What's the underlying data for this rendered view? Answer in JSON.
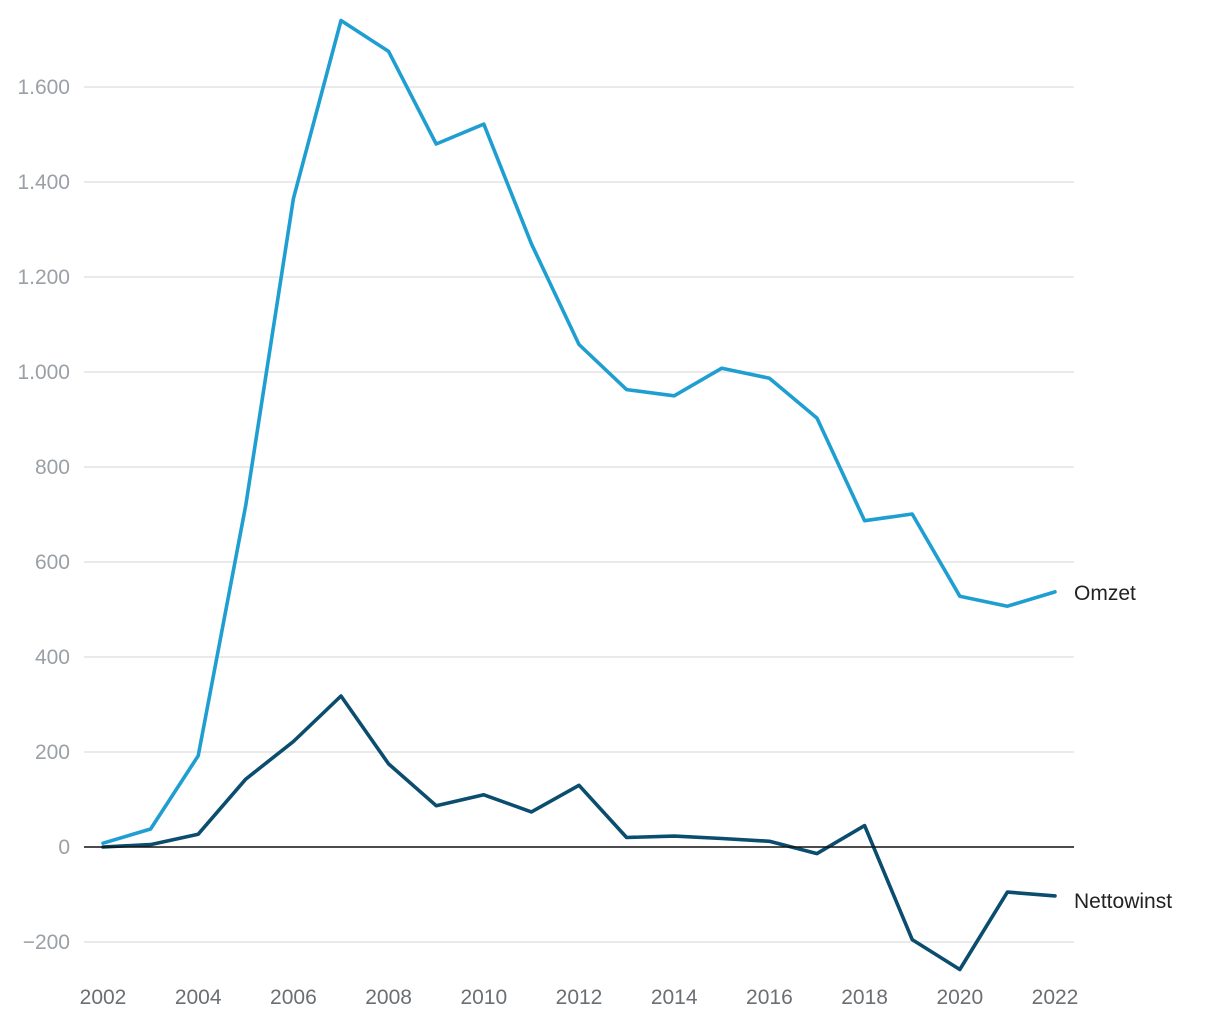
{
  "chart_data": {
    "type": "line",
    "title": "",
    "xlabel": "",
    "ylabel": "",
    "x": [
      2002,
      2003,
      2004,
      2005,
      2006,
      2007,
      2008,
      2009,
      2010,
      2011,
      2012,
      2013,
      2014,
      2015,
      2016,
      2017,
      2018,
      2019,
      2020,
      2021,
      2022
    ],
    "xticks": [
      "2002",
      "2004",
      "2006",
      "2008",
      "2010",
      "2012",
      "2014",
      "2016",
      "2018",
      "2020",
      "2022"
    ],
    "ylim": [
      -260,
      1740
    ],
    "yticks": [
      {
        "value": -200,
        "label": "−200"
      },
      {
        "value": 0,
        "label": "0"
      },
      {
        "value": 200,
        "label": "200"
      },
      {
        "value": 400,
        "label": "400"
      },
      {
        "value": 600,
        "label": "600"
      },
      {
        "value": 800,
        "label": "800"
      },
      {
        "value": 1000,
        "label": "1.000"
      },
      {
        "value": 1200,
        "label": "1.200"
      },
      {
        "value": 1400,
        "label": "1.400"
      },
      {
        "value": 1600,
        "label": "1.600"
      }
    ],
    "grid": true,
    "legend": "end-of-line labels",
    "series": [
      {
        "name": "Omzet",
        "color": "#1f9fd1",
        "values": [
          8,
          38,
          192,
          720,
          1365,
          1740,
          1675,
          1480,
          1522,
          1270,
          1058,
          963,
          950,
          1008,
          987,
          903,
          687,
          701,
          528,
          507,
          537
        ]
      },
      {
        "name": "Nettowinst",
        "color": "#0a4d6e",
        "values": [
          0,
          5,
          27,
          143,
          222,
          318,
          175,
          87,
          110,
          74,
          130,
          20,
          23,
          18,
          12,
          -14,
          45,
          -195,
          -258,
          -95,
          -103
        ]
      }
    ]
  }
}
